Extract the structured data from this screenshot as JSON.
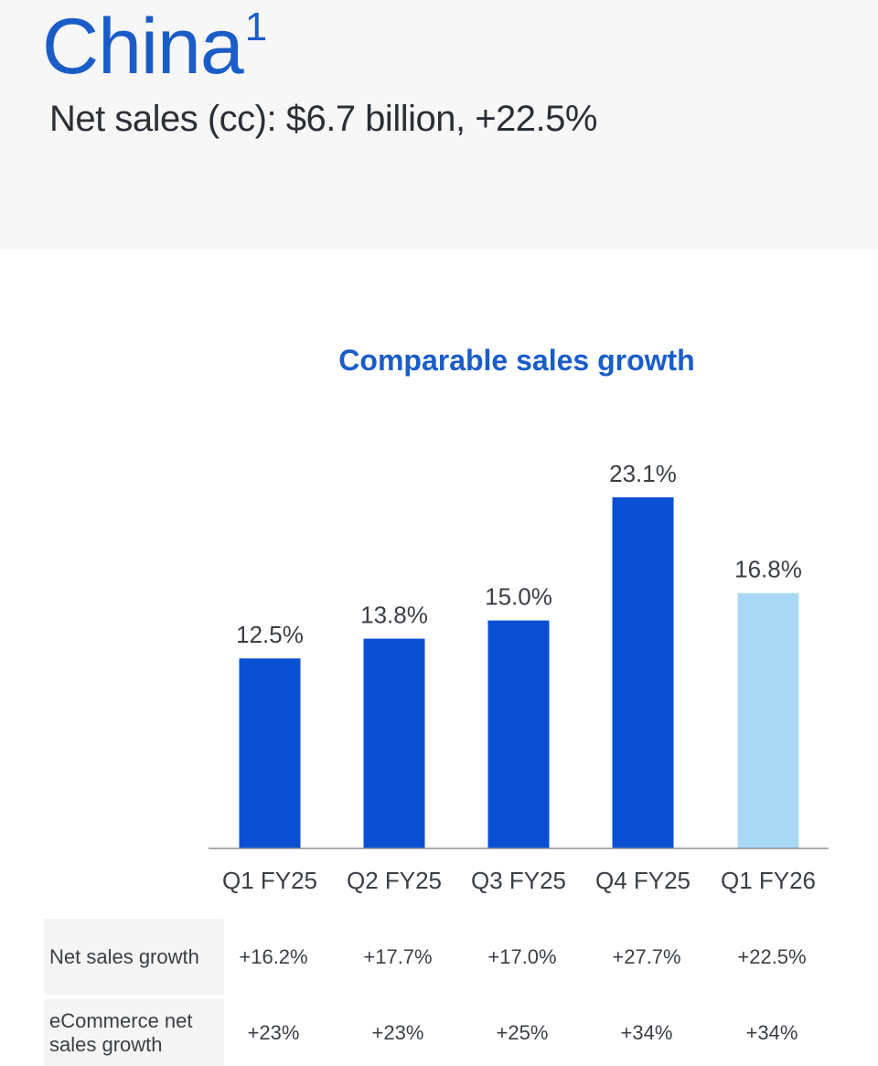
{
  "header": {
    "title": "China",
    "superscript": "1",
    "subtitle": "Net sales (cc): $6.7 billion, +22.5%"
  },
  "chart_data": {
    "type": "bar",
    "title": "Comparable sales growth",
    "categories": [
      "Q1 FY25",
      "Q2 FY25",
      "Q3 FY25",
      "Q4 FY25",
      "Q1 FY26"
    ],
    "values": [
      12.5,
      13.8,
      15.0,
      23.1,
      16.8
    ],
    "value_labels": [
      "12.5%",
      "13.8%",
      "15.0%",
      "23.1%",
      "16.8%"
    ],
    "colors": [
      "#0a50d4",
      "#0a50d4",
      "#0a50d4",
      "#0a50d4",
      "#a9d8f4"
    ],
    "xlabel": "",
    "ylabel": "",
    "ylim": [
      0,
      23.1
    ],
    "grid": false
  },
  "table": {
    "rows": [
      {
        "label": "Net sales growth",
        "values": [
          "+16.2%",
          "+17.7%",
          "+17.0%",
          "+27.7%",
          "+22.5%"
        ]
      },
      {
        "label": "eCommerce net sales growth",
        "values": [
          "+23%",
          "+23%",
          "+25%",
          "+34%",
          "+34%"
        ]
      }
    ]
  }
}
